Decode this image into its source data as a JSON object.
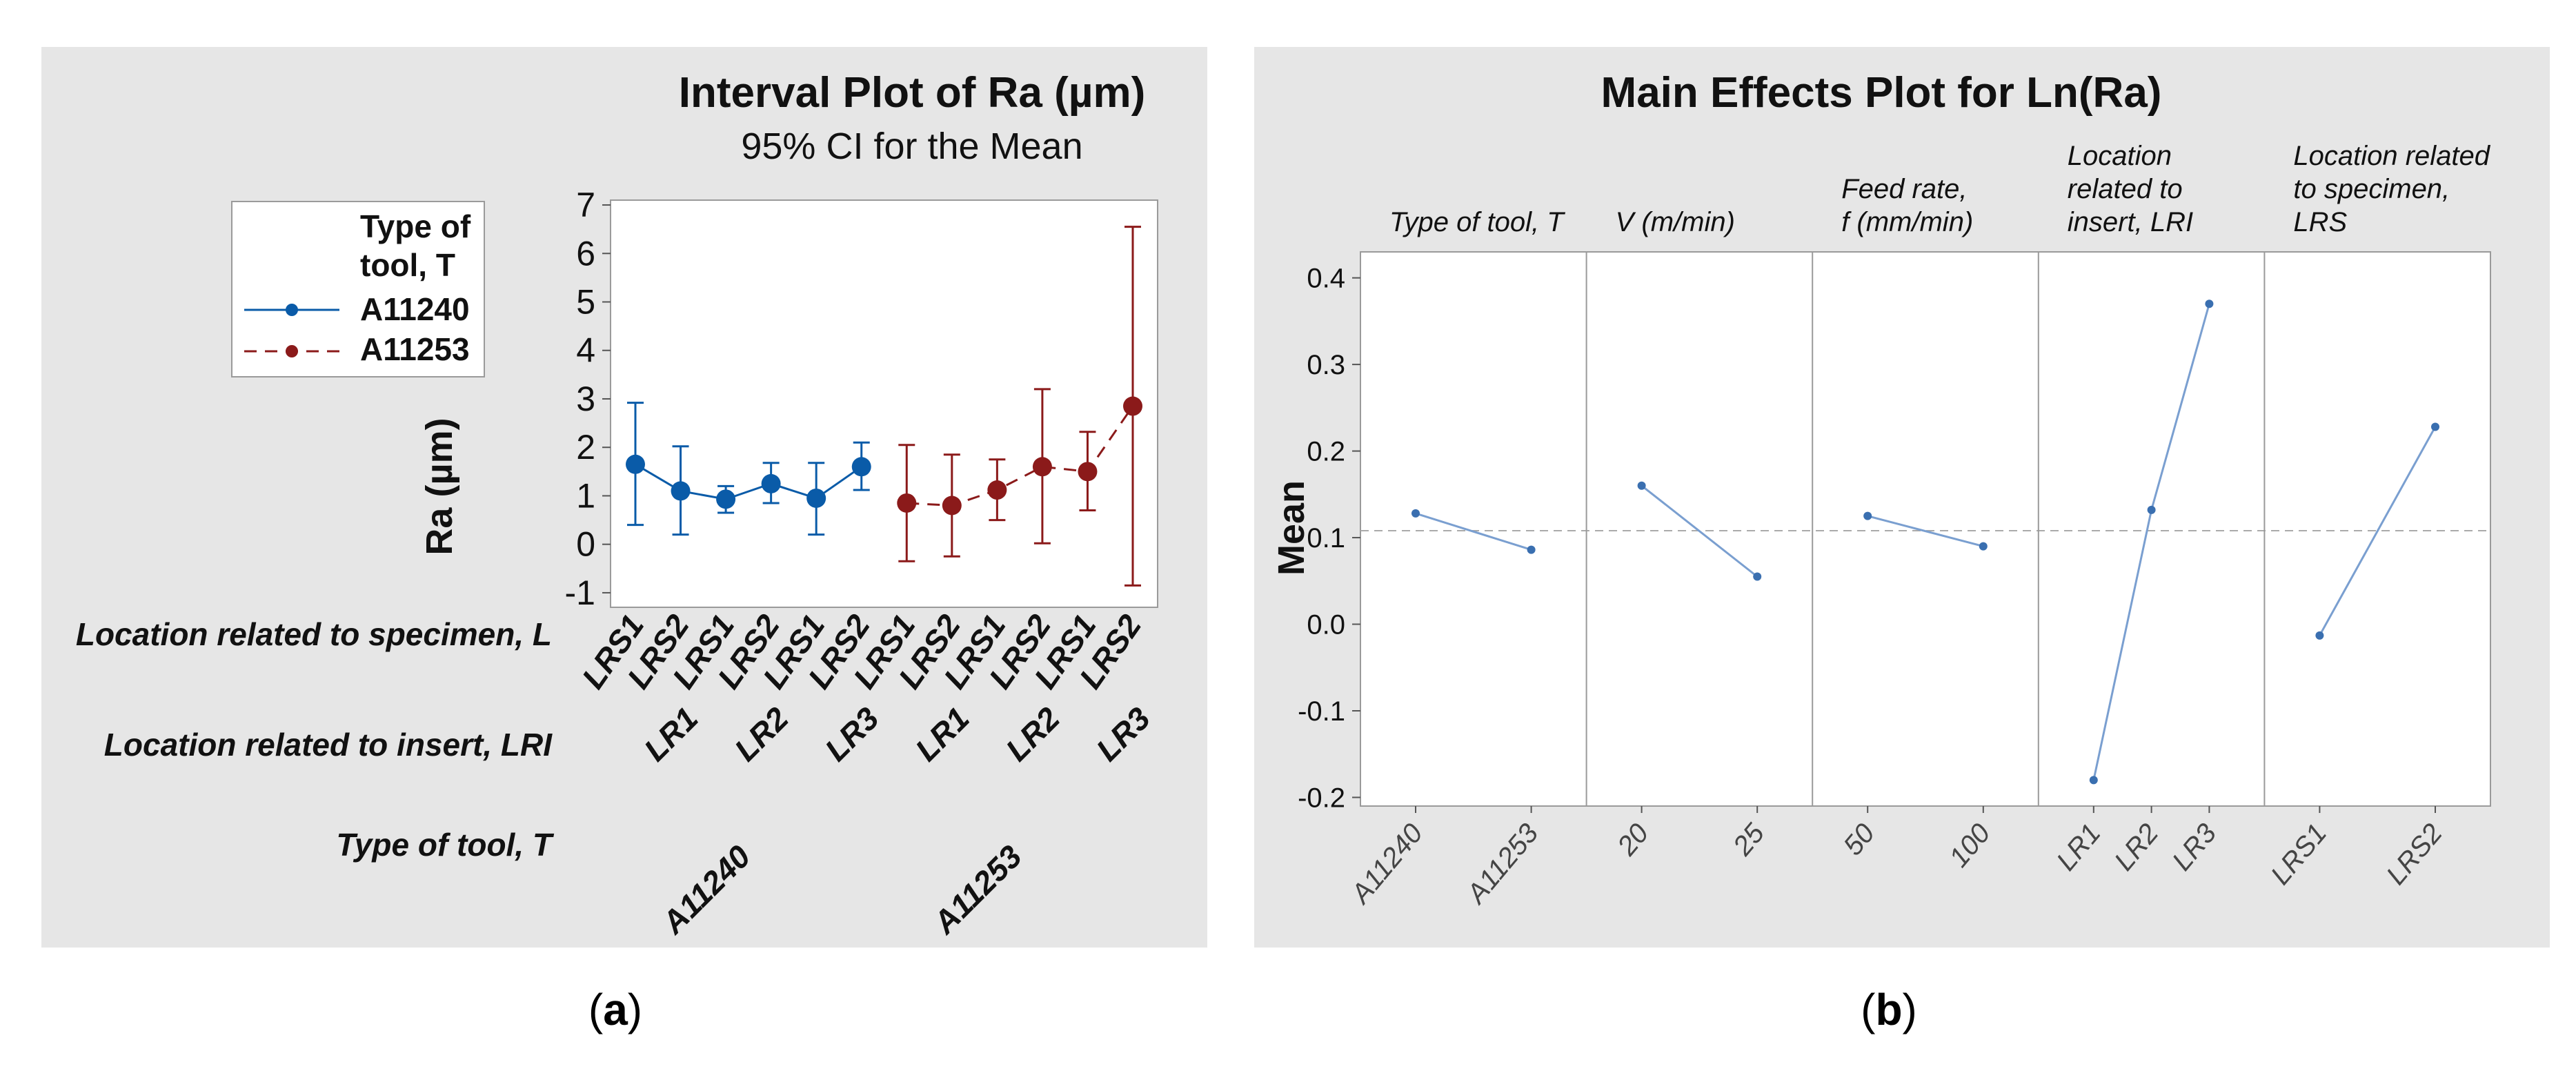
{
  "captions": {
    "a": {
      "open": "(",
      "letter": "a",
      "close": ")"
    },
    "b": {
      "open": "(",
      "letter": "b",
      "close": ")"
    }
  },
  "chart_data": [
    {
      "type": "line",
      "subtype": "interval-plot",
      "title": "Interval Plot of Ra (µm)",
      "subtitle": "95% CI for the Mean",
      "ylabel": "Ra (µm)",
      "ylim": [
        -1.3,
        7.1
      ],
      "yticks": [
        -1,
        0,
        1,
        2,
        3,
        4,
        5,
        6,
        7
      ],
      "legend": {
        "title_lines": [
          "Type of",
          "tool, T"
        ],
        "placement": "left"
      },
      "row_labels": {
        "l": "Location related to specimen, L",
        "lri": "Location related to insert, LRI",
        "t": "Type of tool, T"
      },
      "lrs_labels": [
        "LRS1",
        "LRS2",
        "LRS1",
        "LRS2",
        "LRS1",
        "LRS2",
        "LRS1",
        "LRS2",
        "LRS1",
        "LRS2",
        "LRS1",
        "LRS2"
      ],
      "lri_labels": [
        "LR1",
        "LR2",
        "LR3",
        "LR1",
        "LR2",
        "LR3"
      ],
      "tool_labels": [
        "A11240",
        "A11253"
      ],
      "series": [
        {
          "name": "A11240",
          "color": "#0a5ba8",
          "dash": "solid",
          "means": [
            1.65,
            1.1,
            0.93,
            1.25,
            0.95,
            1.6
          ],
          "lower": [
            0.4,
            0.2,
            0.65,
            0.85,
            0.2,
            1.12
          ],
          "upper": [
            2.92,
            2.02,
            1.2,
            1.68,
            1.68,
            2.1
          ]
        },
        {
          "name": "A11253",
          "color": "#8b1a1a",
          "dash": "dashed",
          "means": [
            0.85,
            0.8,
            1.12,
            1.6,
            1.5,
            2.85
          ],
          "lower": [
            -0.35,
            -0.25,
            0.5,
            0.02,
            0.7,
            -0.85
          ],
          "upper": [
            2.05,
            1.85,
            1.75,
            3.2,
            2.32,
            6.55
          ]
        }
      ]
    },
    {
      "type": "line",
      "subtype": "main-effects",
      "title": "Main Effects Plot for Ln(Ra)",
      "ylabel": "Mean",
      "ylim": [
        -0.21,
        0.43
      ],
      "yticks": [
        -0.2,
        -0.1,
        0.0,
        0.1,
        0.2,
        0.3,
        0.4
      ],
      "yticklabels": [
        "-0.2",
        "-0.1",
        "0.0",
        "0.1",
        "0.2",
        "0.3",
        "0.4"
      ],
      "grand_mean": 0.108,
      "color": "#3a6fb0",
      "panels": [
        {
          "label_lines": [
            "Type of tool, T"
          ],
          "levels": [
            "A11240",
            "A11253"
          ],
          "values": [
            0.128,
            0.086
          ]
        },
        {
          "label_lines": [
            "V (m/min)"
          ],
          "levels": [
            "20",
            "25"
          ],
          "values": [
            0.16,
            0.055
          ]
        },
        {
          "label_lines": [
            "Feed rate,",
            "f (mm/min)"
          ],
          "levels": [
            "50",
            "100"
          ],
          "values": [
            0.125,
            0.09
          ]
        },
        {
          "label_lines": [
            "Location",
            "related to",
            "insert, LRI"
          ],
          "levels": [
            "LR1",
            "LR2",
            "LR3"
          ],
          "values": [
            -0.18,
            0.132,
            0.37
          ]
        },
        {
          "label_lines": [
            "Location related",
            "to specimen,",
            "LRS"
          ],
          "levels": [
            "LRS1",
            "LRS2"
          ],
          "values": [
            -0.013,
            0.228
          ]
        }
      ]
    }
  ]
}
